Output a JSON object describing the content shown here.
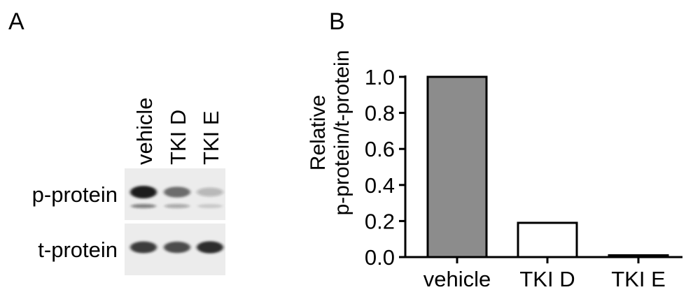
{
  "panel_a": {
    "letter": "A",
    "lanes": [
      "vehicle",
      "TKI D",
      "TKI E"
    ],
    "rows": [
      {
        "label": "p-protein",
        "band_intensity": [
          1.0,
          0.55,
          0.12
        ]
      },
      {
        "label": "t-protein",
        "band_intensity": [
          0.8,
          0.72,
          0.88
        ]
      }
    ]
  },
  "panel_b": {
    "letter": "B"
  },
  "chart_data": {
    "type": "bar",
    "categories": [
      "vehicle",
      "TKI D",
      "TKI E"
    ],
    "values": [
      1.0,
      0.19,
      0.01
    ],
    "bar_fills": [
      "#8c8c8c",
      "#ffffff",
      "#ffffff"
    ],
    "title": "",
    "xlabel": "",
    "ylabel": [
      "Relative",
      "p-protein/t-protein"
    ],
    "ylim": [
      0,
      1.0
    ],
    "yticks": [
      "0.0",
      "0.2",
      "0.4",
      "0.6",
      "0.8",
      "1.0"
    ],
    "grid": false
  }
}
